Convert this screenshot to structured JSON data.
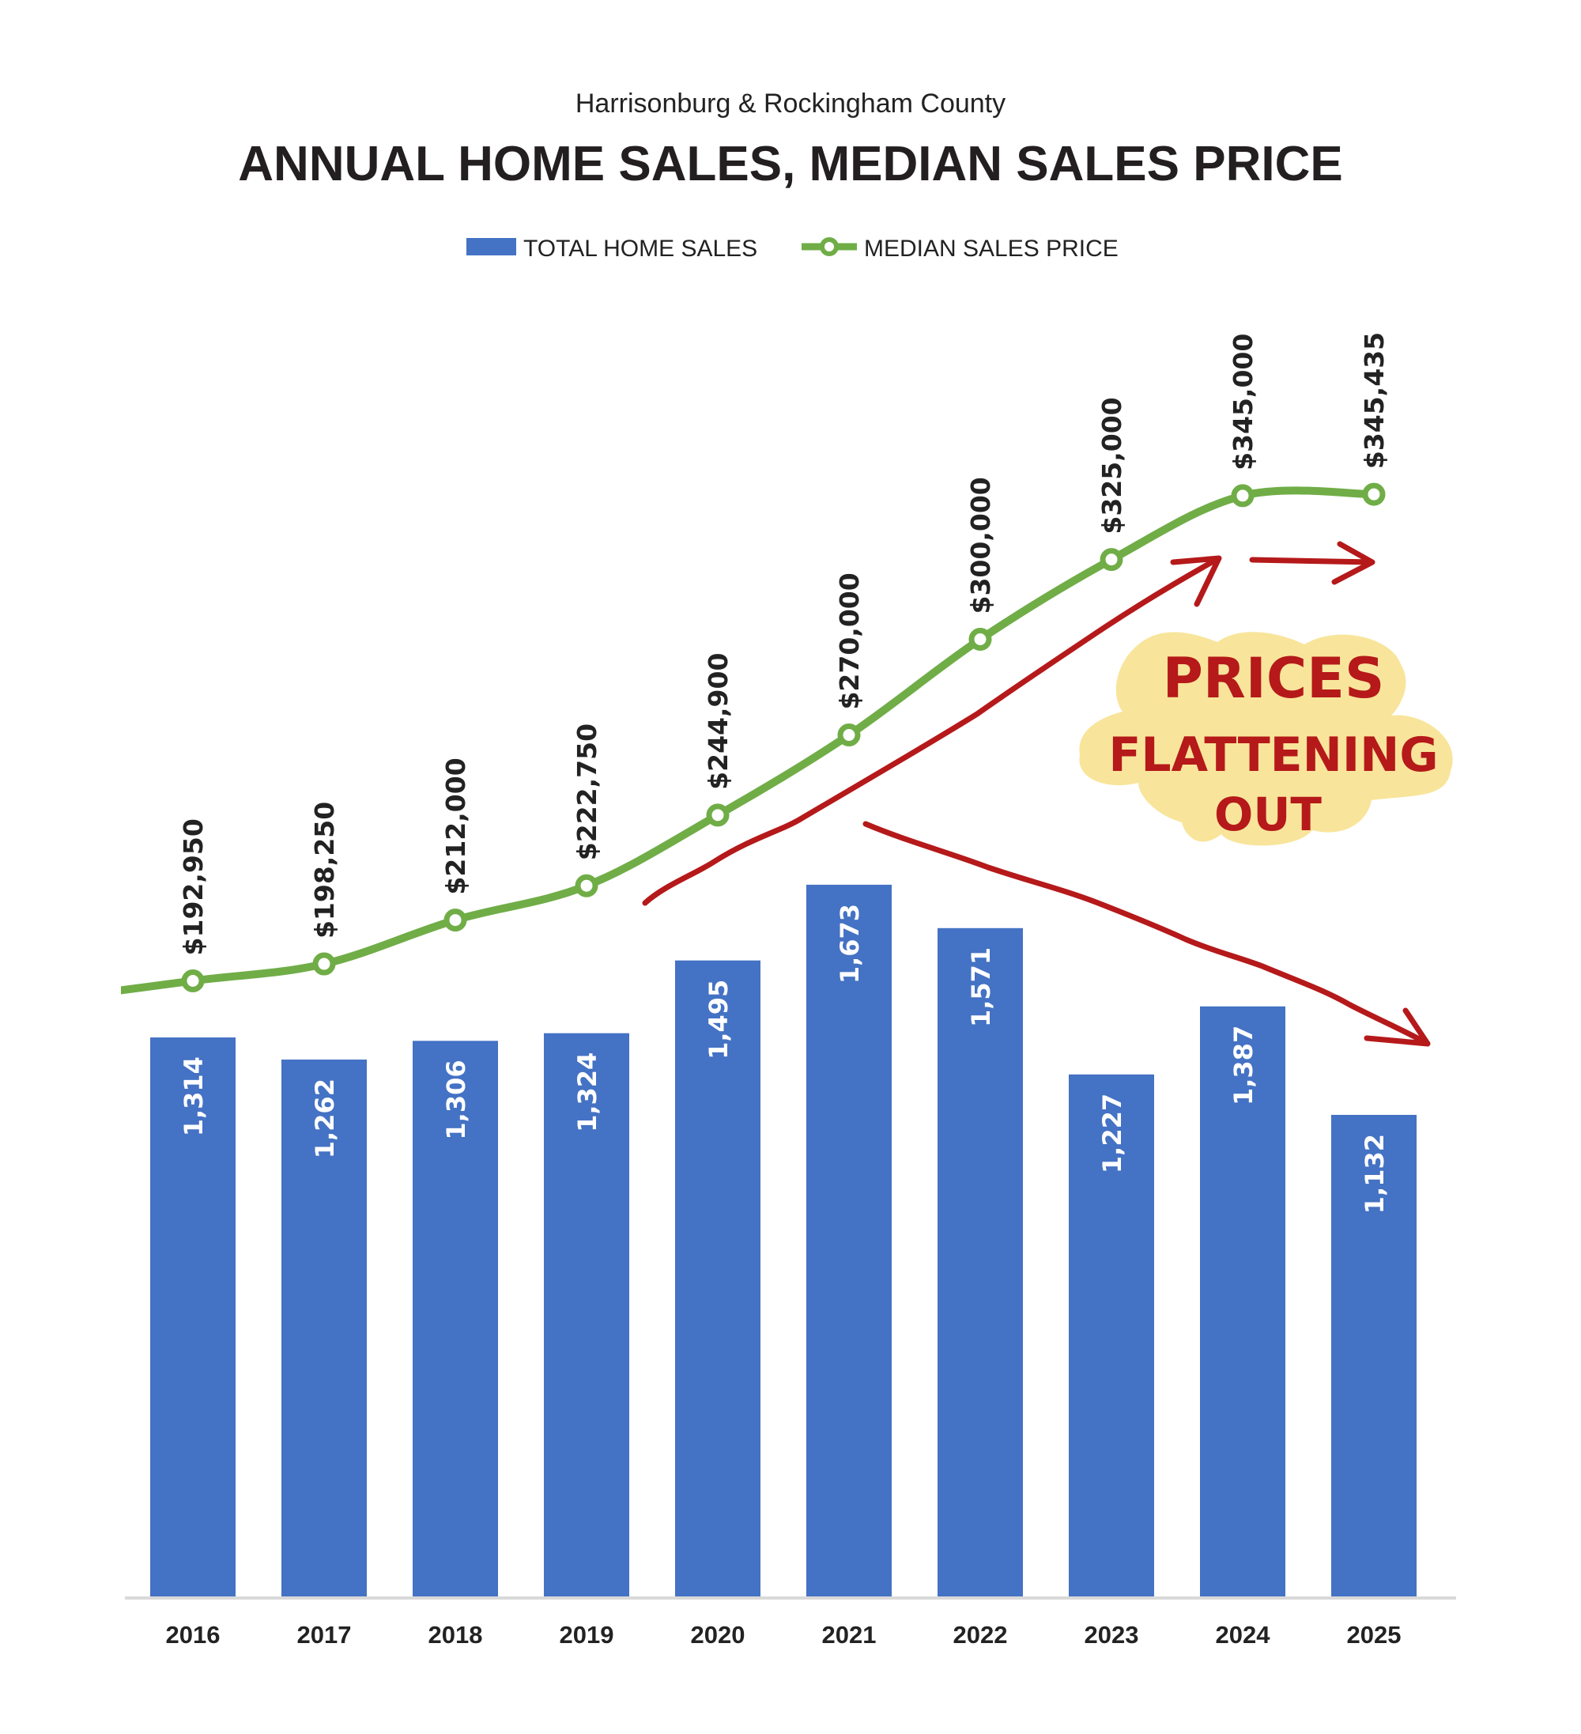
{
  "chart_data": {
    "type": "bar+line",
    "subtitle": "Harrisonburg & Rockingham County",
    "title": "ANNUAL HOME SALES, MEDIAN SALES PRICE",
    "categories": [
      "2016",
      "2017",
      "2018",
      "2019",
      "2020",
      "2021",
      "2022",
      "2023",
      "2024",
      "2025"
    ],
    "series": [
      {
        "name": "TOTAL HOME SALES",
        "type": "bar",
        "axis": "primary",
        "color": "#4472c4",
        "values": [
          1314,
          1262,
          1306,
          1324,
          1495,
          1673,
          1571,
          1227,
          1387,
          1132
        ],
        "labels": [
          "1,314",
          "1,262",
          "1,306",
          "1,324",
          "1,495",
          "1,673",
          "1,571",
          "1,227",
          "1,387",
          "1,132"
        ]
      },
      {
        "name": "MEDIAN SALES PRICE",
        "type": "line",
        "axis": "secondary",
        "color": "#70ad47",
        "smooth": true,
        "markers": "hollow-circle",
        "values": [
          192950,
          198250,
          212000,
          222750,
          244900,
          270000,
          300000,
          325000,
          345000,
          345435
        ],
        "labels": [
          "$192,950",
          "$198,250",
          "$212,000",
          "$222,750",
          "$244,900",
          "$270,000",
          "$300,000",
          "$325,000",
          "$345,000",
          "$345,435"
        ]
      }
    ],
    "primary_ylim": [
      0,
      3000
    ],
    "secondary_ylim": [
      0,
      400000
    ],
    "axes_visible": false,
    "grid": false,
    "legend_position": "top",
    "annotation": {
      "text_lines": [
        "PRICES",
        "FLATTENING",
        "OUT"
      ],
      "text_color": "#b5191a",
      "highlight_color": "#f8e59b",
      "arrows": [
        "rising",
        "flat",
        "falling"
      ]
    }
  }
}
